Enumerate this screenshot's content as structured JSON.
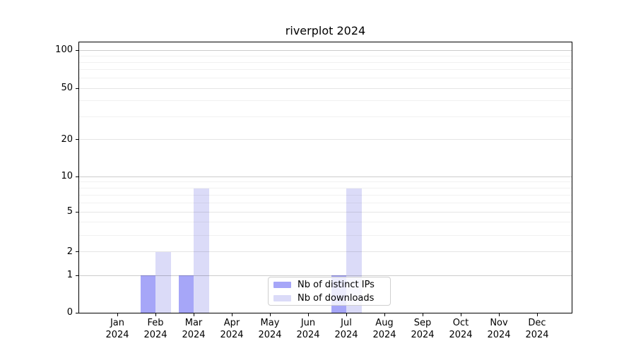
{
  "figure": {
    "title": "riverplot 2024"
  },
  "chart_data": {
    "type": "bar",
    "title": "riverplot 2024",
    "categories": [
      "Jan 2024",
      "Feb 2024",
      "Mar 2024",
      "Apr 2024",
      "May 2024",
      "Jun 2024",
      "Jul 2024",
      "Aug 2024",
      "Sep 2024",
      "Oct 2024",
      "Nov 2024",
      "Dec 2024"
    ],
    "series": [
      {
        "name": "Nb of distinct IPs",
        "color": "#a6a6f8",
        "values": [
          0,
          1,
          1,
          0,
          0,
          0,
          1,
          0,
          0,
          0,
          0,
          0
        ]
      },
      {
        "name": "Nb of downloads",
        "color": "#dbdbf8",
        "values": [
          0,
          2,
          8,
          0,
          0,
          0,
          8,
          0,
          0,
          0,
          0,
          0
        ]
      }
    ],
    "yscale": "log1p",
    "ylim": [
      0,
      100
    ],
    "y_tick_values": [
      0,
      1,
      2,
      5,
      10,
      20,
      50,
      100
    ],
    "y_tick_labels": [
      "0",
      "1",
      "2",
      "5",
      "10",
      "20",
      "50",
      "100"
    ],
    "y_decade_gridlines": [
      1,
      10,
      100
    ],
    "y_minor_gridlines": [
      3,
      4,
      6,
      7,
      8,
      9,
      30,
      40,
      60,
      70,
      80,
      90
    ],
    "grid": "on",
    "legend_position": "lower center"
  }
}
